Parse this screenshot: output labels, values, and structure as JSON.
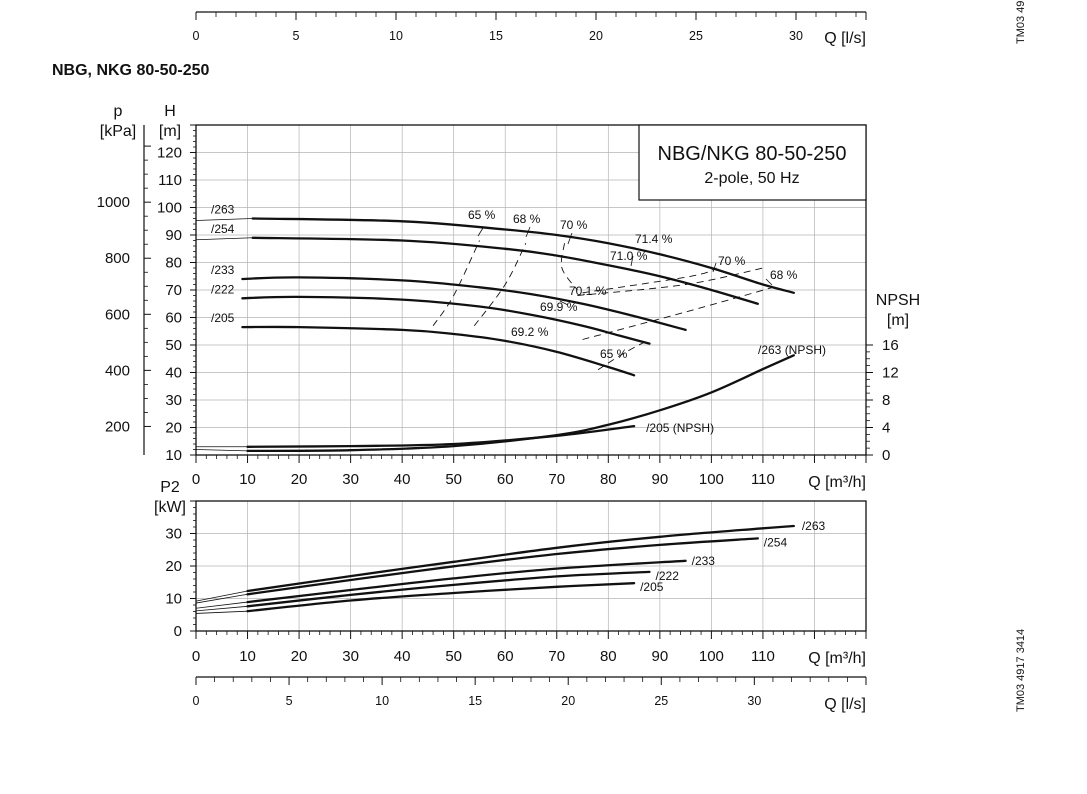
{
  "title": "NBG, NKG 80-50-250",
  "side_codes": {
    "top": "TM03 49",
    "bottom": "TM03 4917 3414"
  },
  "legend_box": {
    "line1": "NBG/NKG 80-50-250",
    "line2": "2-pole, 50 Hz"
  },
  "chart_data": [
    {
      "type": "line",
      "id": "top-flow-scale",
      "xlabel": "Q [l/s]",
      "xlim": [
        0,
        33.5
      ],
      "x_ticks": [
        0,
        5,
        10,
        15,
        20,
        25,
        30
      ]
    },
    {
      "type": "line",
      "id": "head-curves",
      "xlabel": "Q [m³/h]",
      "ylabel": "H [m]",
      "ylabel_parts": {
        "name": "H",
        "unit": "[m]"
      },
      "y2label": "p [kPa]",
      "y2label_parts": {
        "name": "p",
        "unit": "[kPa]"
      },
      "y3label": "NPSH [m]",
      "y3label_parts": {
        "name": "NPSH",
        "unit": "[m]"
      },
      "xlim": [
        0,
        130
      ],
      "ylim": [
        10,
        130
      ],
      "x_ticks": [
        0,
        10,
        20,
        30,
        40,
        50,
        60,
        70,
        80,
        90,
        100,
        110
      ],
      "y_ticks": [
        10,
        20,
        30,
        40,
        50,
        60,
        70,
        80,
        90,
        100,
        110,
        120
      ],
      "kpa_ticks": [
        200,
        400,
        600,
        800,
        1000
      ],
      "npsh_ticks": [
        0,
        4,
        8,
        12,
        16
      ],
      "grid": true,
      "series": [
        {
          "name": "/263",
          "x": [
            0,
            20,
            40,
            60,
            70,
            80,
            90,
            100,
            110,
            116
          ],
          "y": [
            96,
            96,
            95,
            92,
            90,
            87,
            83,
            78,
            72,
            69
          ]
        },
        {
          "name": "/254",
          "x": [
            0,
            20,
            40,
            60,
            70,
            80,
            90,
            100,
            109
          ],
          "y": [
            89,
            89,
            88,
            85,
            82.5,
            79,
            75,
            70,
            65
          ]
        },
        {
          "name": "/233",
          "x": [
            9,
            20,
            40,
            55,
            65,
            75,
            85,
            95
          ],
          "y": [
            74,
            74.6,
            73.5,
            71,
            68.5,
            65,
            60.5,
            55.5
          ]
        },
        {
          "name": "/222",
          "x": [
            9,
            20,
            40,
            55,
            65,
            75,
            82,
            88
          ],
          "y": [
            67,
            67.5,
            66.5,
            64,
            61,
            57,
            53.5,
            50.5
          ]
        },
        {
          "name": "/205",
          "x": [
            9,
            20,
            40,
            50,
            60,
            70,
            80,
            85
          ],
          "y": [
            56.5,
            56.5,
            55.5,
            54,
            51.5,
            47.5,
            42,
            39
          ]
        }
      ],
      "npsh_series": [
        {
          "name": "/263 (NPSH)",
          "x": [
            0,
            10,
            30,
            50,
            70,
            80,
            90,
            100,
            110,
            116
          ],
          "y": [
            0.8,
            0.6,
            0.7,
            1.3,
            2.9,
            4.4,
            6.5,
            9.1,
            12.5,
            14.5
          ]
        },
        {
          "name": "/205 (NPSH)",
          "x": [
            0,
            10,
            30,
            50,
            70,
            85
          ],
          "y": [
            1.2,
            1.2,
            1.3,
            1.6,
            2.8,
            4.2
          ]
        }
      ],
      "efficiency_labels": [
        "65 %",
        "68 %",
        "70 %",
        "71.4 %",
        "71.0 %",
        "70 %",
        "68 %",
        "70.1 %",
        "69.9 %",
        "69.2 %",
        "65 %"
      ]
    },
    {
      "type": "line",
      "id": "power-curves",
      "xlabel": "Q [m³/h]",
      "ylabel": "P2 [kW]",
      "ylabel_parts": {
        "name": "P2",
        "unit": "[kW]"
      },
      "xlim": [
        0,
        130
      ],
      "ylim": [
        0,
        40
      ],
      "x_ticks": [
        0,
        10,
        20,
        30,
        40,
        50,
        60,
        70,
        80,
        90,
        100,
        110
      ],
      "y_ticks": [
        0,
        10,
        20,
        30
      ],
      "grid": true,
      "series": [
        {
          "name": "/263",
          "x": [
            0,
            10,
            30,
            50,
            70,
            90,
            110,
            116
          ],
          "y": [
            9.2,
            12.3,
            16.9,
            21.3,
            25.6,
            29,
            31.6,
            32.3
          ]
        },
        {
          "name": "/254",
          "x": [
            0,
            10,
            30,
            50,
            70,
            90,
            109
          ],
          "y": [
            8.6,
            11.3,
            15.7,
            19.9,
            23.7,
            26.5,
            28.5
          ]
        },
        {
          "name": "/233",
          "x": [
            0,
            10,
            30,
            50,
            70,
            95
          ],
          "y": [
            7,
            8.9,
            12.6,
            16.2,
            19.2,
            21.6
          ]
        },
        {
          "name": "/222",
          "x": [
            0,
            10,
            30,
            50,
            70,
            88
          ],
          "y": [
            6.2,
            7.6,
            11.1,
            14.2,
            16.8,
            18.2
          ]
        },
        {
          "name": "/205",
          "x": [
            0,
            10,
            30,
            50,
            70,
            85
          ],
          "y": [
            5.4,
            6.1,
            9.4,
            11.7,
            13.6,
            14.7
          ]
        }
      ]
    },
    {
      "type": "line",
      "id": "bottom-flow-scale",
      "xlabel": "Q [l/s]",
      "xlim": [
        0,
        36
      ],
      "x_ticks": [
        0,
        5,
        10,
        15,
        20,
        25,
        30
      ]
    }
  ]
}
